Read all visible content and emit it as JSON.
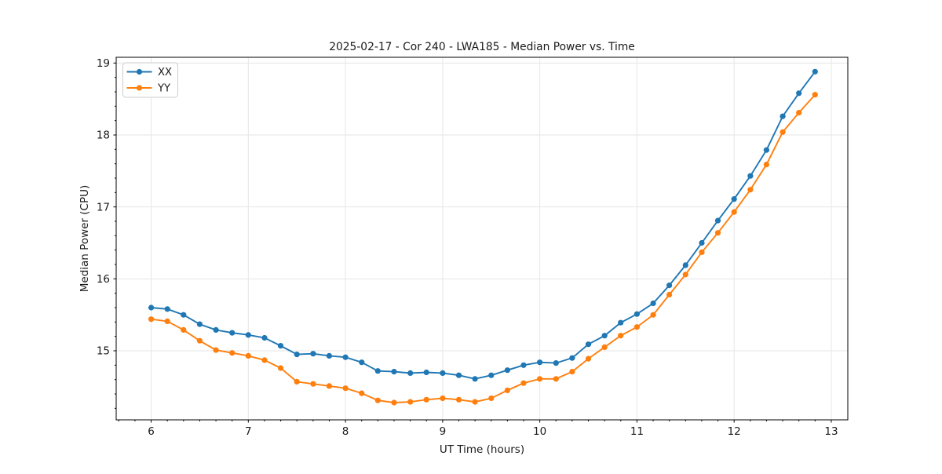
{
  "chart_data": {
    "type": "line",
    "title": "2025-02-17 - Cor 240 - LWA185 - Median Power vs. Time",
    "xlabel": "UT Time (hours)",
    "ylabel": "Median Power (CPU)",
    "xlim": [
      5.64,
      13.17
    ],
    "ylim": [
      14.04,
      19.08
    ],
    "xticks": [
      6,
      7,
      8,
      9,
      10,
      11,
      12,
      13
    ],
    "yticks": [
      15,
      16,
      17,
      18,
      19
    ],
    "x_minor_step": 0.1667,
    "y_minor_step": 0.2,
    "grid": true,
    "legend_position": "upper left",
    "x": [
      6.0,
      6.167,
      6.333,
      6.5,
      6.667,
      6.833,
      7.0,
      7.167,
      7.333,
      7.5,
      7.667,
      7.833,
      8.0,
      8.167,
      8.333,
      8.5,
      8.667,
      8.833,
      9.0,
      9.167,
      9.333,
      9.5,
      9.667,
      9.833,
      10.0,
      10.167,
      10.333,
      10.5,
      10.667,
      10.833,
      11.0,
      11.167,
      11.333,
      11.5,
      11.667,
      11.833,
      12.0,
      12.167,
      12.333,
      12.5,
      12.667,
      12.833
    ],
    "series": [
      {
        "name": "XX",
        "color": "#1f77b4",
        "values": [
          15.6,
          15.58,
          15.5,
          15.37,
          15.29,
          15.25,
          15.22,
          15.18,
          15.07,
          14.95,
          14.96,
          14.93,
          14.91,
          14.84,
          14.72,
          14.71,
          14.69,
          14.7,
          14.69,
          14.66,
          14.61,
          14.66,
          14.73,
          14.8,
          14.84,
          14.83,
          14.9,
          15.09,
          15.21,
          15.39,
          15.51,
          15.66,
          15.91,
          16.19,
          16.5,
          16.81,
          17.11,
          17.43,
          17.79,
          18.26,
          18.58,
          18.88
        ]
      },
      {
        "name": "YY",
        "color": "#ff7f0e",
        "values": [
          15.44,
          15.41,
          15.29,
          15.14,
          15.01,
          14.97,
          14.93,
          14.87,
          14.76,
          14.57,
          14.54,
          14.51,
          14.48,
          14.41,
          14.31,
          14.28,
          14.29,
          14.32,
          14.34,
          14.32,
          14.29,
          14.34,
          14.45,
          14.55,
          14.61,
          14.61,
          14.71,
          14.89,
          15.05,
          15.21,
          15.33,
          15.5,
          15.78,
          16.06,
          16.37,
          16.64,
          16.93,
          17.24,
          17.59,
          18.04,
          18.31,
          18.56
        ]
      }
    ]
  }
}
